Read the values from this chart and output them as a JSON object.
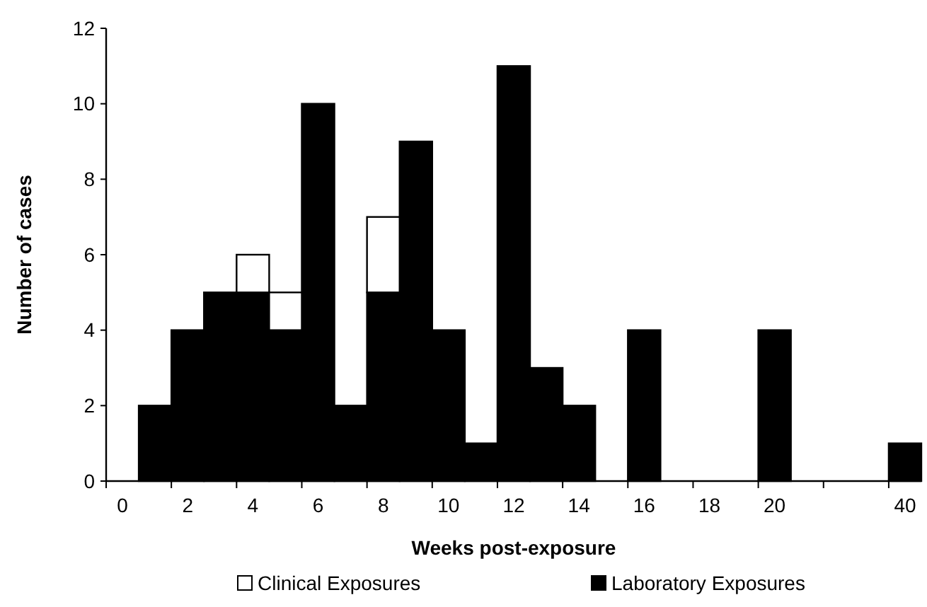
{
  "chart_data": {
    "type": "bar",
    "stacked": true,
    "xlabel": "Weeks post-exposure",
    "ylabel": "Number of cases",
    "categories": [
      "0",
      null,
      "2",
      null,
      "4",
      null,
      "6",
      null,
      "8",
      null,
      "10",
      null,
      "12",
      null,
      "14",
      null,
      "16",
      null,
      "18",
      null,
      "20",
      null,
      null,
      null,
      "40"
    ],
    "series": [
      {
        "name": "Laboratory Exposures",
        "color": "#000000",
        "values": [
          0,
          2,
          4,
          5,
          5,
          4,
          10,
          2,
          5,
          9,
          4,
          1,
          11,
          3,
          2,
          0,
          4,
          0,
          0,
          0,
          4,
          0,
          0,
          0,
          1
        ]
      },
      {
        "name": "Clinical Exposures",
        "color": "#ffffff",
        "values": [
          0,
          0,
          0,
          0,
          1,
          1,
          0,
          0,
          2,
          0,
          0,
          0,
          0,
          0,
          0,
          0,
          0,
          0,
          0,
          0,
          0,
          0,
          0,
          0,
          0
        ]
      }
    ],
    "ylim": [
      0,
      12
    ],
    "yticks": [
      0,
      2,
      4,
      6,
      8,
      10,
      12
    ],
    "grid": false,
    "legend": "bottom"
  }
}
